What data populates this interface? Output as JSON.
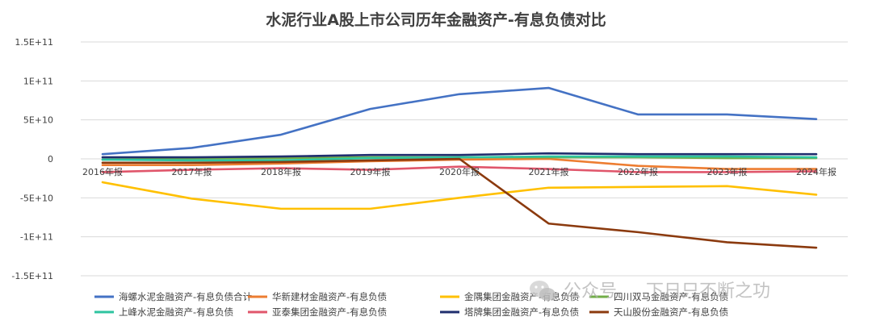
{
  "chart_data": {
    "type": "line",
    "title": "水泥行业A股上市公司历年金融资产-有息负债对比",
    "categories": [
      "2016年报",
      "2017年报",
      "2018年报",
      "2019年报",
      "2020年报",
      "2021年报",
      "2022年报",
      "2023年报",
      "2024年报"
    ],
    "y_ticks": [
      "1.5E+11",
      "1E+11",
      "5E+10",
      "0",
      "-5E+10",
      "-1E+11",
      "-1.5E+11"
    ],
    "ylim": [
      -150000000000,
      150000000000
    ],
    "grid": "horizontal",
    "legend_position": "bottom",
    "series": [
      {
        "name": "海螺水泥金融资产-有息负债合计",
        "color": "#4472C4",
        "values": [
          6000000000,
          14000000000,
          31000000000,
          64000000000,
          83000000000,
          91000000000,
          57000000000,
          57000000000,
          51000000000
        ]
      },
      {
        "name": "华新建材金融资产-有息负债",
        "color": "#ED7D31",
        "values": [
          -8000000000,
          -8000000000,
          -6000000000,
          -3000000000,
          -1000000000,
          0,
          -9000000000,
          -13000000000,
          -13000000000
        ]
      },
      {
        "name": "金隅集团金融资产-有息负债",
        "color": "#FFC000",
        "values": [
          -30000000000,
          -51000000000,
          -64000000000,
          -64000000000,
          -50000000000,
          -37000000000,
          -36000000000,
          -35000000000,
          -46000000000
        ]
      },
      {
        "name": "四川双马金融资产-有息负债",
        "color": "#70AD47",
        "values": [
          -1000000000,
          500000000,
          1000000000,
          2000000000,
          2000000000,
          2000000000,
          2000000000,
          1000000000,
          1000000000
        ]
      },
      {
        "name": "上峰水泥金融资产-有息负债",
        "color": "#2EC4A0",
        "values": [
          -1000000000,
          -2000000000,
          -2000000000,
          1000000000,
          2000000000,
          3000000000,
          3000000000,
          3000000000,
          2000000000
        ]
      },
      {
        "name": "亚泰集团金融资产-有息负债",
        "color": "#E0566B",
        "values": [
          -17000000000,
          -14000000000,
          -12000000000,
          -14000000000,
          -10000000000,
          -13000000000,
          -17000000000,
          -17000000000,
          -16000000000
        ]
      },
      {
        "name": "塔牌集团金融资产-有息负债",
        "color": "#1F2E6E",
        "values": [
          2000000000,
          2000000000,
          3000000000,
          5000000000,
          5000000000,
          7000000000,
          6000000000,
          6000000000,
          6000000000
        ]
      },
      {
        "name": "天山股份金融资产-有息负债",
        "color": "#8B3A0E",
        "values": [
          -5000000000,
          -5000000000,
          -4000000000,
          -2000000000,
          0,
          -83000000000,
          -94000000000,
          -107000000000,
          -114000000000
        ]
      }
    ]
  },
  "watermark": {
    "left_text": "公众号",
    "right_text": "下日只不断之功",
    "right_text_line2": "·不断之功"
  }
}
